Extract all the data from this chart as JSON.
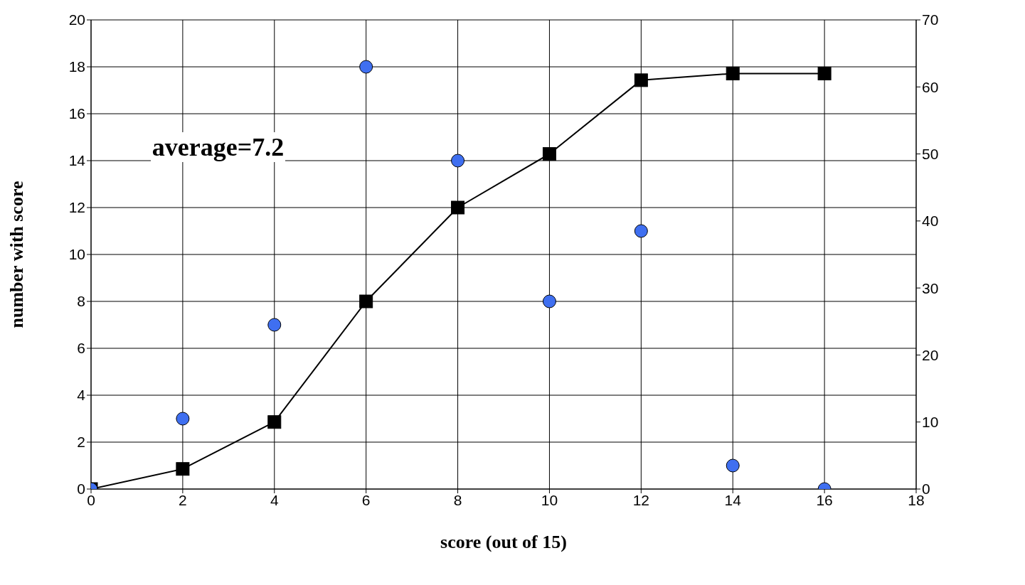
{
  "chart_data": {
    "type": "scatter",
    "xlabel": "score (out of 15)",
    "ylabel": "number with score",
    "annotations": [
      "average=7.2"
    ],
    "xlim": [
      0,
      18
    ],
    "xticks": [
      0,
      2,
      4,
      6,
      8,
      10,
      12,
      14,
      16,
      18
    ],
    "ylim": [
      0,
      20
    ],
    "yticks": [
      0,
      2,
      4,
      6,
      8,
      10,
      12,
      14,
      16,
      18,
      20
    ],
    "y2lim": [
      0,
      70
    ],
    "y2ticks": [
      0,
      10,
      20,
      30,
      40,
      50,
      60,
      70
    ],
    "grid": true,
    "legend": false,
    "series": [
      {
        "type": "line",
        "axis": "y2",
        "color": "#000000",
        "marker": "square",
        "line_style": "solid",
        "x": [
          0,
          2,
          4,
          6,
          8,
          10,
          12,
          14,
          16
        ],
        "values": [
          0,
          3,
          10,
          28,
          42,
          50,
          61,
          62,
          62
        ]
      },
      {
        "color": "#3f6ff0",
        "marker": "circle",
        "x": [
          0,
          2,
          4,
          6,
          8,
          10,
          12,
          14,
          16
        ],
        "values": [
          0,
          3,
          7,
          18,
          14,
          8,
          11,
          1,
          0
        ]
      }
    ]
  }
}
